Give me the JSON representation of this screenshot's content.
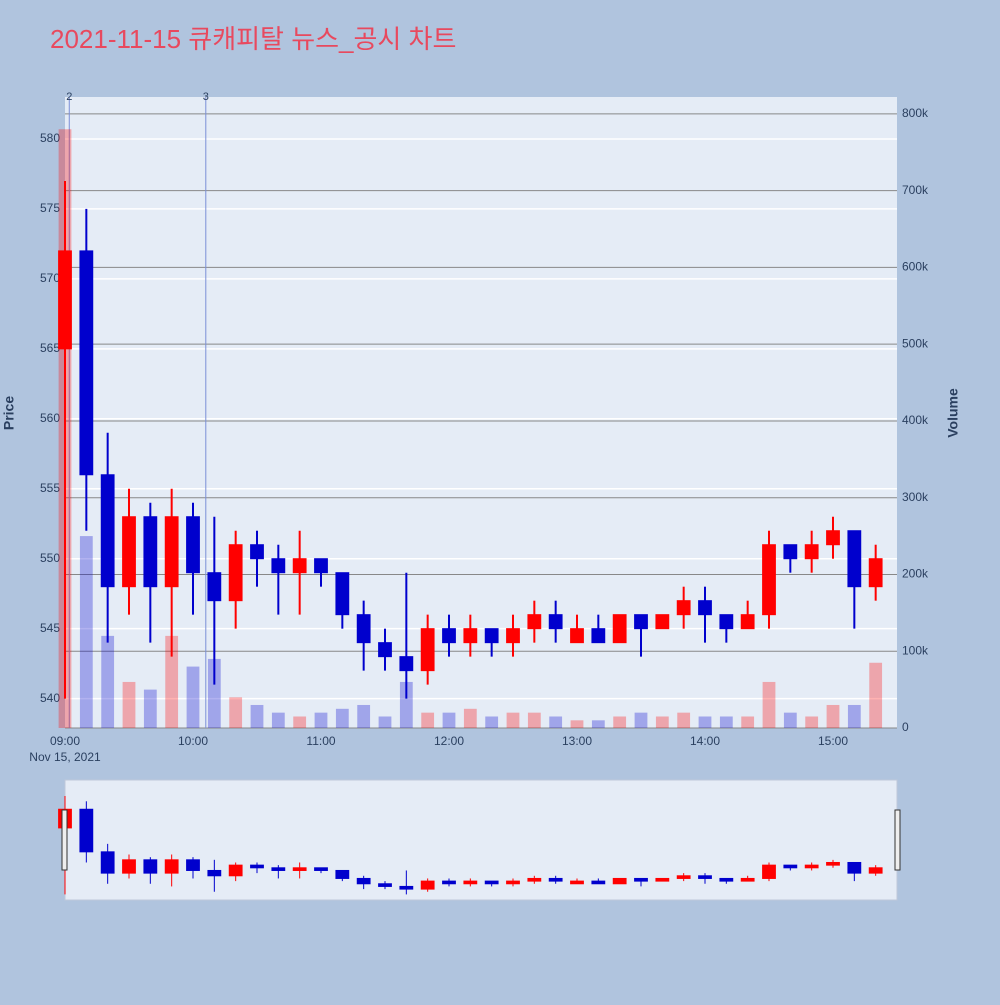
{
  "chart_data": {
    "type": "candlestick",
    "title": "2021-11-15 큐캐피탈 뉴스_공시 차트",
    "y_label": "Price",
    "y2_label": "Volume",
    "x": [
      "09:00",
      "09:10",
      "09:20",
      "09:30",
      "09:40",
      "09:50",
      "10:00",
      "10:10",
      "10:20",
      "10:30",
      "10:40",
      "10:50",
      "11:00",
      "11:10",
      "11:20",
      "11:30",
      "11:40",
      "11:50",
      "12:00",
      "12:10",
      "12:20",
      "12:30",
      "12:40",
      "12:50",
      "13:00",
      "13:10",
      "13:20",
      "13:30",
      "13:40",
      "13:50",
      "14:00",
      "14:10",
      "14:20",
      "14:30",
      "14:40",
      "14:50",
      "15:00",
      "15:10",
      "15:20"
    ],
    "open": [
      565,
      572,
      556,
      548,
      553,
      548,
      553,
      549,
      547,
      551,
      550,
      549,
      550,
      549,
      546,
      544,
      543,
      542,
      545,
      544,
      545,
      544,
      545,
      546,
      544,
      545,
      544,
      546,
      545,
      546,
      547,
      546,
      545,
      546,
      551,
      550,
      551,
      552,
      548
    ],
    "high": [
      577,
      575,
      559,
      555,
      554,
      555,
      554,
      553,
      552,
      552,
      551,
      552,
      550,
      549,
      547,
      545,
      549,
      546,
      546,
      546,
      545,
      546,
      547,
      547,
      546,
      546,
      546,
      546,
      546,
      548,
      548,
      546,
      547,
      552,
      551,
      552,
      553,
      552,
      551
    ],
    "low": [
      540,
      552,
      544,
      546,
      544,
      543,
      546,
      541,
      545,
      548,
      546,
      546,
      548,
      545,
      542,
      542,
      540,
      541,
      543,
      543,
      543,
      543,
      544,
      544,
      544,
      544,
      544,
      543,
      545,
      545,
      544,
      544,
      545,
      545,
      549,
      549,
      550,
      545,
      547
    ],
    "close": [
      572,
      556,
      548,
      553,
      548,
      553,
      549,
      547,
      551,
      550,
      549,
      550,
      549,
      546,
      544,
      543,
      542,
      545,
      544,
      545,
      544,
      545,
      546,
      545,
      545,
      544,
      546,
      545,
      546,
      547,
      546,
      545,
      546,
      551,
      550,
      551,
      552,
      548,
      550
    ],
    "volume": [
      780000,
      250000,
      120000,
      60000,
      50000,
      120000,
      80000,
      90000,
      40000,
      30000,
      20000,
      15000,
      20000,
      25000,
      30000,
      15000,
      60000,
      20000,
      20000,
      25000,
      15000,
      20000,
      20000,
      15000,
      10000,
      10000,
      15000,
      20000,
      15000,
      20000,
      15000,
      15000,
      15000,
      60000,
      20000,
      15000,
      30000,
      30000,
      85000
    ],
    "increasing_color": "#ff0000",
    "decreasing_color": "#0000cd",
    "xlim": [
      "09:00",
      "15:30"
    ],
    "xticks": [
      "09:00",
      "10:00",
      "11:00",
      "12:00",
      "13:00",
      "14:00",
      "15:00"
    ],
    "x_date_label": "Nov 15, 2021",
    "ylim": [
      537.9,
      583
    ],
    "yticks": [
      540,
      545,
      550,
      555,
      560,
      565,
      570,
      575,
      580
    ],
    "y2lim": [
      0,
      822000
    ],
    "y2ticks": [
      0,
      {
        "value": 100000,
        "label": "100k"
      },
      {
        "value": 200000,
        "label": "200k"
      },
      {
        "value": 300000,
        "label": "300k"
      },
      {
        "value": 400000,
        "label": "400k"
      },
      {
        "value": 500000,
        "label": "500k"
      },
      {
        "value": 600000,
        "label": "600k"
      },
      {
        "value": 700000,
        "label": "700k"
      },
      {
        "value": 800000,
        "label": "800k"
      }
    ],
    "annotations": [
      {
        "x": "09:02",
        "text": "2"
      },
      {
        "x": "10:06",
        "text": "3"
      }
    ],
    "range_slider": true
  }
}
